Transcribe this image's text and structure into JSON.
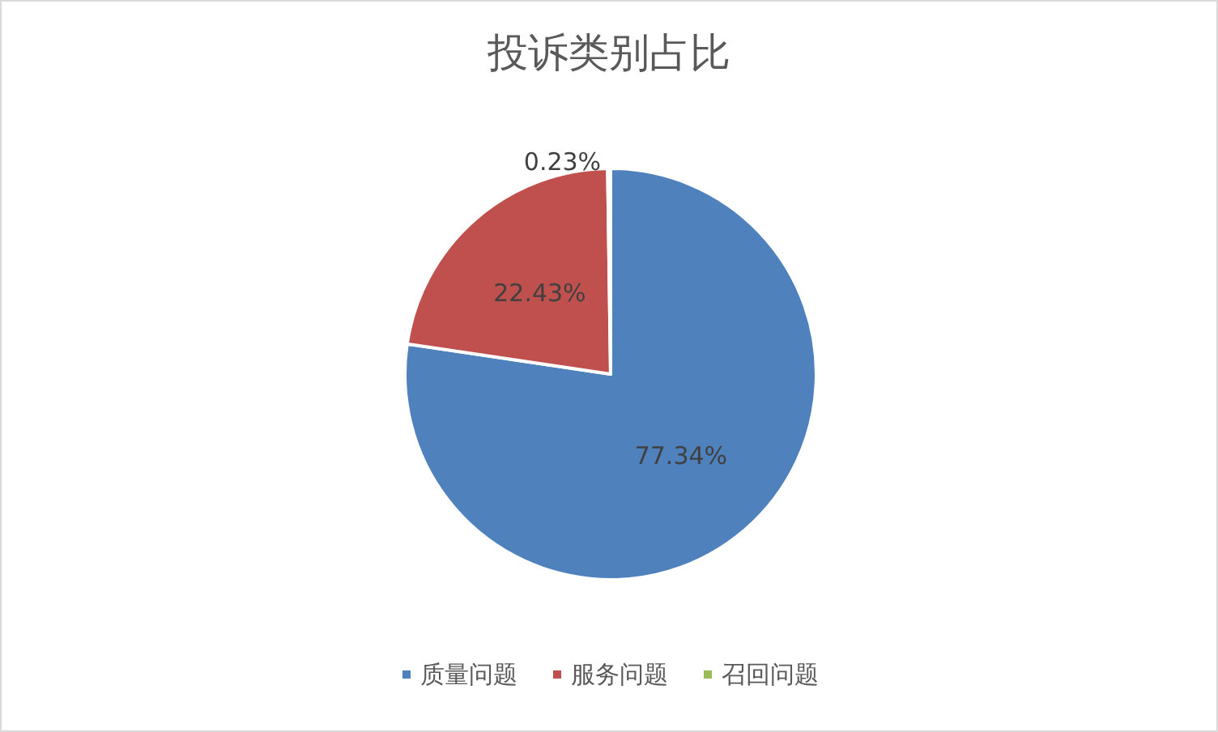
{
  "chart_data": {
    "type": "pie",
    "title": "投诉类别占比",
    "categories": [
      "质量问题",
      "服务问题",
      "召回问题"
    ],
    "values": [
      77.34,
      22.43,
      0.23
    ],
    "colors": [
      "#4f81bd",
      "#c0504d",
      "#9bbb59"
    ],
    "value_labels": [
      "77.34%",
      "22.43%",
      "0.23%"
    ],
    "legend": "bottom"
  }
}
